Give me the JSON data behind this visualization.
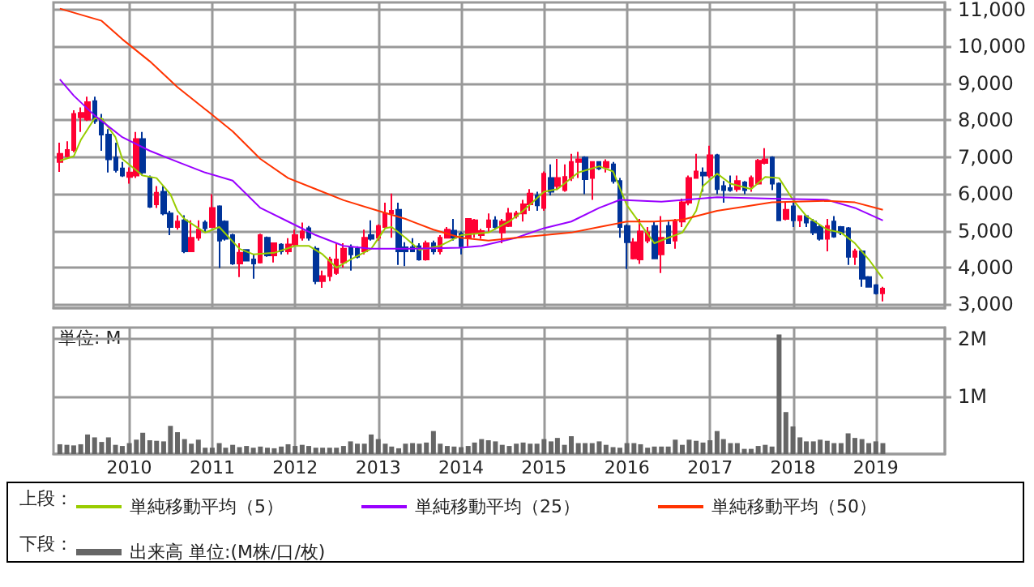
{
  "chart_data": [
    {
      "type": "candlestick",
      "annotations": [
        "上段："
      ],
      "x": [
        "2009-03",
        "2009-04",
        "2009-05",
        "2009-06",
        "2009-07",
        "2009-08",
        "2009-09",
        "2009-10",
        "2009-11",
        "2009-12",
        "2010-01",
        "2010-02",
        "2010-03",
        "2010-04",
        "2010-05",
        "2010-06",
        "2010-07",
        "2010-08",
        "2010-09",
        "2010-10",
        "2010-11",
        "2010-12",
        "2011-01",
        "2011-02",
        "2011-03",
        "2011-04",
        "2011-05",
        "2011-06",
        "2011-07",
        "2011-08",
        "2011-09",
        "2011-10",
        "2011-11",
        "2011-12",
        "2012-01",
        "2012-02",
        "2012-03",
        "2012-04",
        "2012-05",
        "2012-06",
        "2012-07",
        "2012-08",
        "2012-09",
        "2012-10",
        "2012-11",
        "2012-12",
        "2013-01",
        "2013-02",
        "2013-03",
        "2013-04",
        "2013-05",
        "2013-06",
        "2013-07",
        "2013-08",
        "2013-09",
        "2013-10",
        "2013-11",
        "2013-12",
        "2014-01",
        "2014-02",
        "2014-03",
        "2014-04",
        "2014-05",
        "2014-06",
        "2014-07",
        "2014-08",
        "2014-09",
        "2014-10",
        "2014-11",
        "2014-12",
        "2015-01",
        "2015-02",
        "2015-03",
        "2015-04",
        "2015-05",
        "2015-06",
        "2015-07",
        "2015-08",
        "2015-09",
        "2015-10",
        "2015-11",
        "2015-12",
        "2016-01",
        "2016-02",
        "2016-03",
        "2016-04",
        "2016-05",
        "2016-06",
        "2016-07",
        "2016-08",
        "2016-09",
        "2016-10",
        "2016-11",
        "2016-12",
        "2017-01",
        "2017-02",
        "2017-03",
        "2017-04",
        "2017-05",
        "2017-06",
        "2017-07",
        "2017-08",
        "2017-09",
        "2017-10",
        "2017-11",
        "2017-12",
        "2018-01",
        "2018-02",
        "2018-03",
        "2018-04",
        "2018-05",
        "2018-06",
        "2018-07",
        "2018-08",
        "2018-09",
        "2018-10",
        "2018-11",
        "2018-12",
        "2019-01",
        "2019-02"
      ],
      "ohlc": [
        [
          6870,
          7390,
          6600,
          7090
        ],
        [
          7020,
          7430,
          6990,
          7190
        ],
        [
          7190,
          8270,
          7130,
          8170
        ],
        [
          8080,
          8350,
          7680,
          8200
        ],
        [
          8020,
          8640,
          7980,
          8490
        ],
        [
          8520,
          8640,
          7900,
          7980
        ],
        [
          8020,
          8170,
          7170,
          7610
        ],
        [
          7610,
          7760,
          6580,
          6940
        ],
        [
          6990,
          7390,
          6580,
          6650
        ],
        [
          6690,
          6870,
          6460,
          6500
        ],
        [
          6460,
          6720,
          6280,
          6580
        ],
        [
          6500,
          7680,
          6430,
          7490
        ],
        [
          7490,
          7680,
          6500,
          6580
        ],
        [
          6430,
          6500,
          5620,
          5650
        ],
        [
          5720,
          6210,
          5620,
          6030
        ],
        [
          6060,
          6210,
          5420,
          5470
        ],
        [
          5470,
          5540,
          4880,
          5100
        ],
        [
          5100,
          5420,
          5030,
          5250
        ],
        [
          5280,
          5420,
          4390,
          4440
        ],
        [
          4440,
          5280,
          4440,
          4810
        ],
        [
          4810,
          5280,
          4730,
          5030
        ],
        [
          5220,
          5280,
          4950,
          5070
        ],
        [
          5100,
          5990,
          5100,
          5620
        ],
        [
          5660,
          5690,
          3990,
          4730
        ],
        [
          5250,
          5280,
          4730,
          4780
        ],
        [
          4880,
          4920,
          4070,
          4110
        ],
        [
          4110,
          4660,
          3740,
          4400
        ],
        [
          4480,
          4480,
          4190,
          4190
        ],
        [
          4220,
          4360,
          3700,
          4110
        ],
        [
          4140,
          4920,
          4110,
          4880
        ],
        [
          4810,
          4840,
          4290,
          4330
        ],
        [
          4330,
          4660,
          4140,
          4660
        ],
        [
          4620,
          4660,
          4360,
          4440
        ],
        [
          4440,
          4800,
          4360,
          4630
        ],
        [
          4630,
          5030,
          4580,
          4880
        ],
        [
          4810,
          5220,
          4730,
          4980
        ],
        [
          5070,
          5130,
          4730,
          4810
        ],
        [
          4510,
          4580,
          3550,
          3630
        ],
        [
          3630,
          3920,
          3450,
          3770
        ],
        [
          3770,
          4290,
          3630,
          4220
        ],
        [
          3850,
          4660,
          3800,
          4220
        ],
        [
          4140,
          4660,
          4000,
          4510
        ],
        [
          4550,
          4630,
          3920,
          4360
        ],
        [
          4510,
          4580,
          4250,
          4290
        ],
        [
          4440,
          5030,
          4360,
          4810
        ],
        [
          4880,
          5280,
          4730,
          4780
        ],
        [
          4810,
          5170,
          4730,
          5130
        ],
        [
          5100,
          5760,
          5100,
          5470
        ],
        [
          5470,
          6010,
          4810,
          5540
        ],
        [
          5570,
          5760,
          4070,
          4440
        ],
        [
          4550,
          4690,
          4040,
          4440
        ],
        [
          4550,
          4800,
          4440,
          4440
        ],
        [
          4580,
          4660,
          4190,
          4220
        ],
        [
          4220,
          4730,
          4190,
          4660
        ],
        [
          4660,
          4730,
          4360,
          4440
        ],
        [
          4440,
          4880,
          4360,
          4810
        ],
        [
          4810,
          5100,
          4810,
          5030
        ],
        [
          5000,
          5320,
          4730,
          4810
        ],
        [
          4920,
          4980,
          4360,
          4580
        ],
        [
          4810,
          5320,
          4580,
          5320
        ],
        [
          4950,
          5320,
          4810,
          5280
        ],
        [
          4880,
          5050,
          4780,
          4990
        ],
        [
          5100,
          5470,
          4950,
          5280
        ],
        [
          5280,
          5390,
          5030,
          5100
        ],
        [
          4950,
          5320,
          4660,
          5250
        ],
        [
          5130,
          5620,
          5100,
          5470
        ],
        [
          5400,
          5540,
          5330,
          5470
        ],
        [
          5470,
          5840,
          5250,
          5720
        ],
        [
          5720,
          6130,
          5540,
          6010
        ],
        [
          5960,
          6060,
          5540,
          5690
        ],
        [
          5620,
          6610,
          5540,
          6550
        ],
        [
          6430,
          6800,
          5960,
          6060
        ],
        [
          6210,
          6950,
          6100,
          6430
        ],
        [
          6100,
          6800,
          6060,
          6460
        ],
        [
          6430,
          7090,
          6350,
          6870
        ],
        [
          6870,
          7140,
          6430,
          6940
        ],
        [
          6990,
          7020,
          5990,
          6400
        ],
        [
          6430,
          6870,
          5840,
          6870
        ],
        [
          6870,
          6870,
          6650,
          6690
        ],
        [
          6720,
          6940,
          6580,
          6870
        ],
        [
          6800,
          6870,
          6280,
          6350
        ],
        [
          6350,
          6430,
          4810,
          5100
        ],
        [
          5130,
          5170,
          3960,
          4690
        ],
        [
          4250,
          4800,
          4220,
          4690
        ],
        [
          4220,
          5320,
          4100,
          4980
        ],
        [
          4730,
          5100,
          4660,
          4950
        ],
        [
          5130,
          5250,
          4250,
          4250
        ],
        [
          4360,
          5400,
          3850,
          4810
        ],
        [
          5130,
          5250,
          4660,
          4660
        ],
        [
          4730,
          5320,
          4510,
          5250
        ],
        [
          5250,
          5870,
          5100,
          5770
        ],
        [
          5760,
          6500,
          5690,
          6430
        ],
        [
          6430,
          7090,
          6430,
          6610
        ],
        [
          6580,
          6720,
          6060,
          6500
        ],
        [
          6500,
          7310,
          6430,
          7050
        ],
        [
          7050,
          7090,
          5990,
          6130
        ],
        [
          6210,
          6350,
          5760,
          6100
        ],
        [
          6160,
          6500,
          6060,
          6100
        ],
        [
          6130,
          6500,
          6060,
          6350
        ],
        [
          6310,
          6350,
          5990,
          6100
        ],
        [
          6210,
          6500,
          6060,
          6430
        ],
        [
          6280,
          6950,
          6250,
          6900
        ],
        [
          6840,
          7240,
          6800,
          6940
        ],
        [
          6990,
          7020,
          6100,
          6280
        ],
        [
          6280,
          6310,
          5280,
          5280
        ],
        [
          5320,
          5760,
          5280,
          5570
        ],
        [
          5660,
          5760,
          5100,
          5280
        ],
        [
          5280,
          5400,
          5100,
          5400
        ],
        [
          5400,
          5420,
          5100,
          5220
        ],
        [
          5250,
          5320,
          4880,
          4950
        ],
        [
          5100,
          5170,
          4730,
          4780
        ],
        [
          4780,
          5320,
          4440,
          5130
        ],
        [
          5250,
          5400,
          4810,
          4840
        ],
        [
          5100,
          5130,
          4880,
          4950
        ],
        [
          5070,
          5100,
          4070,
          4290
        ],
        [
          4290,
          4510,
          4070,
          4440
        ],
        [
          4440,
          4480,
          3480,
          3700
        ],
        [
          3740,
          3770,
          3480,
          3480
        ],
        [
          3520,
          3550,
          3270,
          3300
        ],
        [
          3300,
          3480,
          3080,
          3430
        ]
      ],
      "colors": [
        "#ff0033",
        "#ff0033",
        "#ff0033",
        "#ff0033",
        "#ff0033",
        "#003399",
        "#003399",
        "#003399",
        "#003399",
        "#003399",
        "#ff0033",
        "#ff0033",
        "#003399",
        "#003399",
        "#ff0033",
        "#003399",
        "#003399",
        "#ff0033",
        "#003399",
        "#ff0033",
        "#ff0033",
        "#003399",
        "#ff0033",
        "#003399",
        "#003399",
        "#003399",
        "#ff0033",
        "#003399",
        "#003399",
        "#ff0033",
        "#003399",
        "#ff0033",
        "#003399",
        "#ff0033",
        "#ff0033",
        "#ff0033",
        "#003399",
        "#003399",
        "#ff0033",
        "#ff0033",
        "#ff0033",
        "#ff0033",
        "#003399",
        "#003399",
        "#ff0033",
        "#003399",
        "#ff0033",
        "#ff0033",
        "#ff0033",
        "#003399",
        "#003399",
        "#003399",
        "#003399",
        "#ff0033",
        "#003399",
        "#ff0033",
        "#ff0033",
        "#003399",
        "#003399",
        "#ff0033",
        "#ff0033",
        "#ff0033",
        "#ff0033",
        "#003399",
        "#ff0033",
        "#ff0033",
        "#ff0033",
        "#ff0033",
        "#ff0033",
        "#003399",
        "#ff0033",
        "#003399",
        "#ff0033",
        "#ff0033",
        "#ff0033",
        "#ff0033",
        "#003399",
        "#ff0033",
        "#003399",
        "#ff0033",
        "#003399",
        "#003399",
        "#003399",
        "#ff0033",
        "#ff0033",
        "#ff0033",
        "#003399",
        "#ff0033",
        "#003399",
        "#ff0033",
        "#ff0033",
        "#ff0033",
        "#ff0033",
        "#003399",
        "#ff0033",
        "#003399",
        "#003399",
        "#003399",
        "#ff0033",
        "#003399",
        "#ff0033",
        "#ff0033",
        "#ff0033",
        "#003399",
        "#003399",
        "#ff0033",
        "#003399",
        "#ff0033",
        "#003399",
        "#003399",
        "#003399",
        "#ff0033",
        "#003399",
        "#003399",
        "#003399",
        "#ff0033",
        "#003399",
        "#003399",
        "#003399",
        "#ff0033"
      ],
      "series": [
        {
          "type": "line",
          "name": "単純移動平均（5）",
          "color": "#99cc00",
          "x": [
            "2009-03",
            "2009-05",
            "2009-06",
            "2009-08",
            "2009-09",
            "2009-11",
            "2009-12",
            "2010-03",
            "2010-05",
            "2010-07",
            "2010-08",
            "2010-09",
            "2010-12",
            "2011-02",
            "2011-05",
            "2011-07",
            "2011-10",
            "2012-01",
            "2012-03",
            "2012-05",
            "2012-07",
            "2012-09",
            "2012-12",
            "2013-02",
            "2013-03",
            "2013-05",
            "2013-07",
            "2013-10",
            "2014-01",
            "2014-05",
            "2014-08",
            "2014-10",
            "2015-01",
            "2015-03",
            "2015-06",
            "2015-09",
            "2015-11",
            "2016-01",
            "2016-05",
            "2016-07",
            "2016-09",
            "2016-11",
            "2016-12",
            "2017-02",
            "2017-04",
            "2017-07",
            "2017-09",
            "2017-11",
            "2018-01",
            "2018-03",
            "2018-06",
            "2018-08",
            "2018-10",
            "2018-12",
            "2019-02"
          ],
          "values": [
            6900,
            7020,
            7460,
            8050,
            8050,
            7540,
            6950,
            6500,
            6430,
            5990,
            5540,
            5320,
            4950,
            5100,
            4510,
            4360,
            4400,
            4590,
            4590,
            4360,
            4000,
            4220,
            4510,
            5070,
            5100,
            4810,
            4480,
            4590,
            4880,
            4950,
            5250,
            5540,
            6060,
            6130,
            6580,
            6750,
            6610,
            5690,
            4660,
            4810,
            4950,
            5540,
            6210,
            6550,
            6280,
            6130,
            6460,
            6430,
            5840,
            5400,
            5030,
            4950,
            4660,
            4220,
            3700
          ]
        },
        {
          "type": "line",
          "name": "単純移動平均（25）",
          "color": "#9900ff",
          "x": [
            "2009-03",
            "2009-05",
            "2009-08",
            "2009-12",
            "2010-04",
            "2010-08",
            "2010-12",
            "2011-04",
            "2011-08",
            "2011-12",
            "2012-04",
            "2012-08",
            "2012-12",
            "2013-05",
            "2014-01",
            "2014-04",
            "2014-09",
            "2015-01",
            "2015-05",
            "2015-09",
            "2015-12",
            "2016-06",
            "2017-02",
            "2017-10",
            "2018-06",
            "2018-10",
            "2019-02"
          ],
          "values": [
            9110,
            8670,
            8130,
            7540,
            7170,
            6870,
            6580,
            6360,
            5620,
            5250,
            4880,
            4590,
            4510,
            4510,
            4540,
            4590,
            4810,
            5070,
            5250,
            5620,
            5840,
            5790,
            5910,
            5870,
            5840,
            5620,
            5280
          ]
        },
        {
          "type": "line",
          "name": "単純移動平均（50）",
          "color": "#ff3300",
          "x": [
            "2009-03",
            "2009-09",
            "2009-12",
            "2010-04",
            "2010-08",
            "2010-12",
            "2011-04",
            "2011-08",
            "2011-12",
            "2012-04",
            "2012-08",
            "2013-01",
            "2013-05",
            "2013-09",
            "2014-01",
            "2014-05",
            "2014-09",
            "2015-01",
            "2015-05",
            "2015-09",
            "2016-01",
            "2016-05",
            "2016-09",
            "2017-02",
            "2017-10",
            "2018-06",
            "2018-10",
            "2019-02"
          ],
          "values": [
            11030,
            10700,
            10200,
            9600,
            8900,
            8300,
            7700,
            6950,
            6430,
            6130,
            5830,
            5540,
            5320,
            5030,
            4810,
            4730,
            4810,
            4880,
            4950,
            5100,
            5250,
            5250,
            5300,
            5540,
            5770,
            5810,
            5770,
            5570
          ]
        }
      ],
      "xlim": [
        "2009-02",
        "2019-11"
      ],
      "xticks": [
        "2010",
        "2011",
        "2012",
        "2013",
        "2014",
        "2015",
        "2016",
        "2017",
        "2018",
        "2019"
      ],
      "ylim": [
        2900,
        11200
      ],
      "yticks": [
        {
          "value": 3000,
          "label": "3,000"
        },
        {
          "value": 4000,
          "label": "4,000"
        },
        {
          "value": 5000,
          "label": "5,000"
        },
        {
          "value": 6000,
          "label": "6,000"
        },
        {
          "value": 7000,
          "label": "7,000"
        },
        {
          "value": 8000,
          "label": "8,000"
        },
        {
          "value": 9000,
          "label": "9,000"
        },
        {
          "value": 10000,
          "label": "10,000"
        },
        {
          "value": 11000,
          "label": "11,000"
        }
      ],
      "tick_labels": "y",
      "grid": true,
      "legend": "bottom"
    },
    {
      "type": "bar",
      "annotations": [
        "単位: M",
        "下段："
      ],
      "x": [
        "2009-03",
        "2009-04",
        "2009-05",
        "2009-06",
        "2009-07",
        "2009-08",
        "2009-09",
        "2009-10",
        "2009-11",
        "2009-12",
        "2010-01",
        "2010-02",
        "2010-03",
        "2010-04",
        "2010-05",
        "2010-06",
        "2010-07",
        "2010-08",
        "2010-09",
        "2010-10",
        "2010-11",
        "2010-12",
        "2011-01",
        "2011-02",
        "2011-03",
        "2011-04",
        "2011-05",
        "2011-06",
        "2011-07",
        "2011-08",
        "2011-09",
        "2011-10",
        "2011-11",
        "2011-12",
        "2012-01",
        "2012-02",
        "2012-03",
        "2012-04",
        "2012-05",
        "2012-06",
        "2012-07",
        "2012-08",
        "2012-09",
        "2012-10",
        "2012-11",
        "2012-12",
        "2013-01",
        "2013-02",
        "2013-03",
        "2013-04",
        "2013-05",
        "2013-06",
        "2013-07",
        "2013-08",
        "2013-09",
        "2013-10",
        "2013-11",
        "2013-12",
        "2014-01",
        "2014-02",
        "2014-03",
        "2014-04",
        "2014-05",
        "2014-06",
        "2014-07",
        "2014-08",
        "2014-09",
        "2014-10",
        "2014-11",
        "2014-12",
        "2015-01",
        "2015-02",
        "2015-03",
        "2015-04",
        "2015-05",
        "2015-06",
        "2015-07",
        "2015-08",
        "2015-09",
        "2015-10",
        "2015-11",
        "2015-12",
        "2016-01",
        "2016-02",
        "2016-03",
        "2016-04",
        "2016-05",
        "2016-06",
        "2016-07",
        "2016-08",
        "2016-09",
        "2016-10",
        "2016-11",
        "2016-12",
        "2017-01",
        "2017-02",
        "2017-03",
        "2017-04",
        "2017-05",
        "2017-06",
        "2017-07",
        "2017-08",
        "2017-09",
        "2017-10",
        "2017-11",
        "2017-12",
        "2018-01",
        "2018-02",
        "2018-03",
        "2018-04",
        "2018-05",
        "2018-06",
        "2018-07",
        "2018-08",
        "2018-09",
        "2018-10",
        "2018-11",
        "2018-12",
        "2019-01",
        "2019-02"
      ],
      "series": [
        {
          "name": "出来高 単位:(M株/口/枚)",
          "color": "#666666",
          "values": [
            0.17,
            0.16,
            0.15,
            0.17,
            0.34,
            0.29,
            0.21,
            0.29,
            0.16,
            0.14,
            0.19,
            0.25,
            0.37,
            0.24,
            0.23,
            0.22,
            0.49,
            0.38,
            0.26,
            0.18,
            0.25,
            0.11,
            0.11,
            0.19,
            0.11,
            0.16,
            0.12,
            0.14,
            0.11,
            0.13,
            0.11,
            0.1,
            0.13,
            0.17,
            0.14,
            0.16,
            0.14,
            0.11,
            0.11,
            0.11,
            0.11,
            0.14,
            0.22,
            0.18,
            0.18,
            0.34,
            0.26,
            0.18,
            0.13,
            0.1,
            0.18,
            0.19,
            0.18,
            0.2,
            0.4,
            0.18,
            0.14,
            0.13,
            0.12,
            0.14,
            0.2,
            0.26,
            0.24,
            0.22,
            0.16,
            0.14,
            0.18,
            0.2,
            0.18,
            0.18,
            0.26,
            0.22,
            0.28,
            0.16,
            0.31,
            0.19,
            0.19,
            0.19,
            0.22,
            0.16,
            0.12,
            0.11,
            0.19,
            0.19,
            0.17,
            0.11,
            0.13,
            0.13,
            0.13,
            0.25,
            0.16,
            0.25,
            0.23,
            0.2,
            0.24,
            0.4,
            0.26,
            0.19,
            0.19,
            0.09,
            0.09,
            0.14,
            0.16,
            0.13,
            2.08,
            0.73,
            0.48,
            0.29,
            0.22,
            0.22,
            0.25,
            0.23,
            0.19,
            0.19,
            0.36,
            0.28,
            0.26,
            0.19,
            0.22,
            0.19
          ]
        }
      ],
      "xlim": [
        "2009-02",
        "2019-11"
      ],
      "xticks": [
        "2010",
        "2011",
        "2012",
        "2013",
        "2014",
        "2015",
        "2016",
        "2017",
        "2018",
        "2019"
      ],
      "ylim": [
        0,
        2.2
      ],
      "yticks": [
        {
          "value": 1,
          "label": "1M"
        },
        {
          "value": 2,
          "label": "2M"
        }
      ],
      "grid": true,
      "legend": "bottom"
    }
  ]
}
